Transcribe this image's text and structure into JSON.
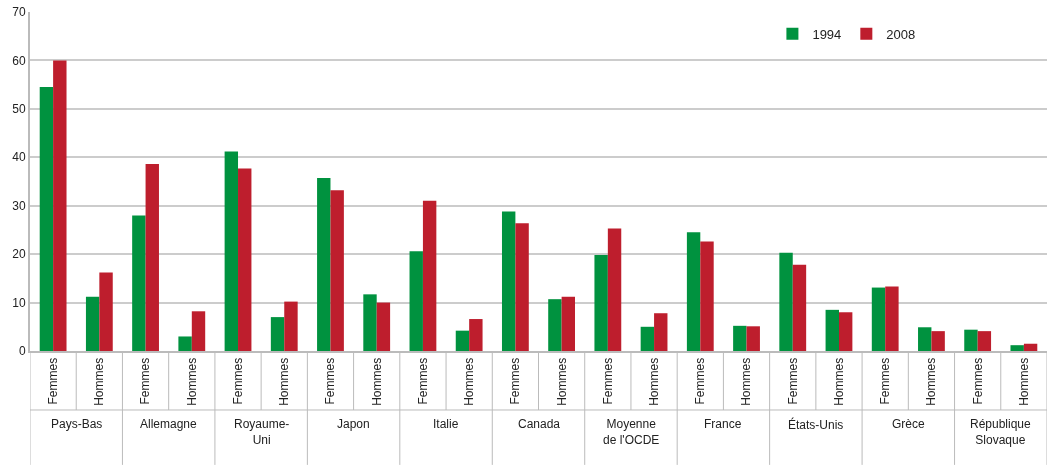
{
  "chart_data": {
    "type": "bar",
    "categories": [
      "Femmes",
      "Hommes",
      "Femmes",
      "Hommes",
      "Femmes",
      "Hommes",
      "Femmes",
      "Hommes",
      "Femmes",
      "Hommes",
      "Femmes",
      "Hommes",
      "Femmes",
      "Hommes",
      "Femmes",
      "Hommes",
      "Femmes",
      "Hommes",
      "Femmes",
      "Hommes",
      "Femmes",
      "Hommes"
    ],
    "series": [
      {
        "name": "1994",
        "color": "#00923f",
        "values": [
          54.5,
          11.2,
          28,
          3,
          41.2,
          7,
          35.7,
          11.7,
          20.6,
          4.2,
          28.8,
          10.7,
          19.8,
          5,
          24.5,
          5.2,
          20.3,
          8.5,
          13.1,
          4.9,
          4.4,
          1.2
        ]
      },
      {
        "name": "2008",
        "color": "#be1e2d",
        "values": [
          60,
          16.2,
          38.6,
          8.2,
          37.7,
          10.2,
          33.2,
          10,
          31,
          6.6,
          26.4,
          11.2,
          25.3,
          7.8,
          22.6,
          5.1,
          17.8,
          8,
          13.3,
          4.1,
          4.1,
          1.5
        ]
      }
    ],
    "annotations": [
      "Pays-Bas",
      "Allemagne",
      "Royaume-\nUni",
      "Japon",
      "Italie",
      "Canada",
      "Moyenne\nde l'OCDE",
      "France",
      "États-Unis",
      "Grèce",
      "République\nSlovaque"
    ],
    "ylim": [
      0,
      70
    ],
    "yticks": [
      0,
      10,
      20,
      30,
      40,
      50,
      60,
      70
    ],
    "grid": "y",
    "legend": "top right"
  }
}
